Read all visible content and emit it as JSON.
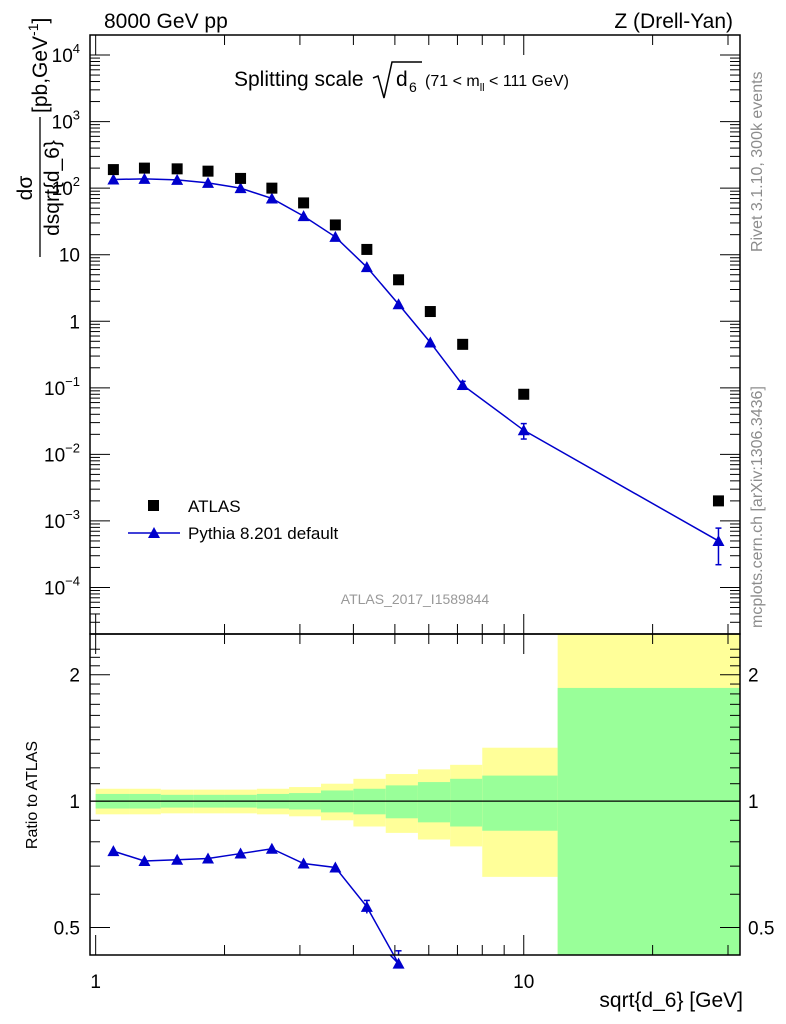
{
  "header": {
    "left": "8000 GeV pp",
    "right": "Z (Drell-Yan)"
  },
  "plot_title": {
    "main": "Splitting scale",
    "symbol": "d",
    "symbol_sub": "6",
    "range_open": "(71 < m",
    "range_sub": "ll",
    "range_close": " < 111 GeV)"
  },
  "analysis_id": "ATLAS_2017_I1589844",
  "side_labels": {
    "rivet": "Rivet 3.1.10,  300k events",
    "mcplots": "mcplots.cern.ch [arXiv:1306.3436]"
  },
  "y_axis_main": {
    "numerator": "dσ",
    "denominator": "dsqrt{d_6}",
    "units": "[pb,GeV",
    "units_sup": "-1",
    "units_close": "]"
  },
  "y_axis_ratio": "Ratio to ATLAS",
  "x_axis": "sqrt{d_6} [GeV]",
  "legend": {
    "data_label": "ATLAS",
    "mc_label": "Pythia 8.201 default"
  },
  "colors": {
    "data": "#000000",
    "mc": "#0000cc",
    "band_inner": "#99ff99",
    "band_outer": "#ffff99",
    "side_text": "#8c8c8c",
    "analysis_text": "#999999"
  },
  "chart_data": [
    {
      "type": "scatter",
      "x_scale": "log",
      "y_scale": "log",
      "xlim": [
        0.97,
        32
      ],
      "ylim": [
        2e-05,
        20000
      ],
      "x_ticks": [
        1,
        10
      ],
      "y_ticks": [
        {
          "v": 10000,
          "base": "10",
          "exp": "4"
        },
        {
          "v": 1000,
          "base": "10",
          "exp": "3"
        },
        {
          "v": 100,
          "base": "10",
          "exp": "2"
        },
        {
          "v": 10,
          "base": "10",
          "exp": ""
        },
        {
          "v": 1,
          "base": "1",
          "exp": ""
        },
        {
          "v": 0.1,
          "base": "10",
          "exp": "−1"
        },
        {
          "v": 0.01,
          "base": "10",
          "exp": "−2"
        },
        {
          "v": 0.001,
          "base": "10",
          "exp": "−3"
        },
        {
          "v": 0.0001,
          "base": "10",
          "exp": "−4"
        }
      ],
      "series": [
        {
          "name": "ATLAS",
          "marker": "square",
          "x": [
            1.1,
            1.3,
            1.55,
            1.83,
            2.18,
            2.58,
            3.06,
            3.63,
            4.3,
            5.1,
            6.05,
            7.2,
            10.0,
            28.5
          ],
          "y": [
            190,
            200,
            195,
            180,
            140,
            100,
            60,
            28,
            12,
            4.2,
            1.4,
            0.45,
            0.08,
            0.002
          ]
        },
        {
          "name": "Pythia 8.201 default",
          "marker": "triangle",
          "x": [
            1.1,
            1.3,
            1.55,
            1.83,
            2.18,
            2.58,
            3.06,
            3.63,
            4.3,
            5.1,
            6.05,
            7.2,
            10.0,
            28.5
          ],
          "y": [
            135,
            138,
            133,
            120,
            100,
            70,
            38,
            18.5,
            6.5,
            1.8,
            0.48,
            0.11,
            0.023,
            0.0005
          ],
          "err": [
            0,
            0,
            0,
            0,
            0,
            0,
            0,
            0,
            0,
            0,
            0,
            0.015,
            0.006,
            0.00028
          ]
        }
      ]
    },
    {
      "type": "line",
      "x_scale": "log",
      "y_scale": "log",
      "xlim": [
        0.97,
        32
      ],
      "ylim": [
        0.43,
        2.5
      ],
      "y_ticks": [
        {
          "v": 0.5,
          "label": "0.5"
        },
        {
          "v": 1,
          "label": "1"
        },
        {
          "v": 2,
          "label": "2"
        }
      ],
      "bins": [
        1.0,
        1.2,
        1.42,
        1.69,
        2.0,
        2.38,
        2.83,
        3.36,
        4.0,
        4.76,
        5.66,
        6.73,
        8.0,
        12.0,
        32.0
      ],
      "band_outer_low": [
        0.93,
        0.93,
        0.935,
        0.935,
        0.935,
        0.93,
        0.92,
        0.9,
        0.87,
        0.84,
        0.81,
        0.78,
        0.66,
        0.38
      ],
      "band_outer_high": [
        1.07,
        1.07,
        1.065,
        1.065,
        1.065,
        1.07,
        1.08,
        1.1,
        1.13,
        1.16,
        1.19,
        1.22,
        1.34,
        2.6
      ],
      "band_inner_low": [
        0.96,
        0.96,
        0.965,
        0.965,
        0.965,
        0.96,
        0.955,
        0.94,
        0.93,
        0.91,
        0.89,
        0.87,
        0.85,
        0.38
      ],
      "band_inner_high": [
        1.04,
        1.04,
        1.035,
        1.035,
        1.035,
        1.04,
        1.045,
        1.06,
        1.07,
        1.09,
        1.11,
        1.13,
        1.15,
        1.86
      ],
      "series": [
        {
          "name": "Pythia 8.201 default",
          "x": [
            1.1,
            1.3,
            1.55,
            1.83,
            2.18,
            2.58,
            3.06,
            3.63,
            4.3,
            5.1
          ],
          "y": [
            0.76,
            0.72,
            0.725,
            0.73,
            0.75,
            0.77,
            0.71,
            0.695,
            0.56,
            0.41
          ],
          "err": [
            0,
            0,
            0,
            0,
            0,
            0,
            0,
            0,
            0.02,
            0.03
          ]
        }
      ]
    }
  ]
}
